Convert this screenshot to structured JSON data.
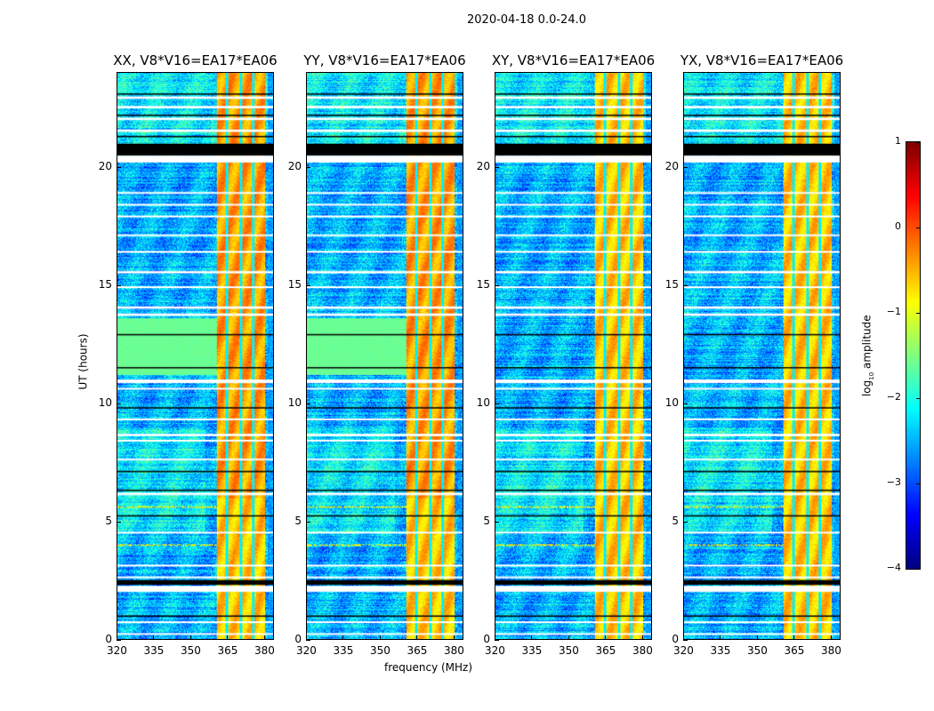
{
  "chart_data": {
    "type": "heatmap",
    "title": "2020-04-18 0.0-24.0",
    "xlabel": "frequency (MHz)",
    "ylabel": "UT (hours)",
    "xlim": [
      320,
      384
    ],
    "ylim": [
      0,
      24
    ],
    "xticks": [
      "320",
      "335",
      "350",
      "365",
      "380"
    ],
    "xtick_values": [
      320,
      335,
      350,
      365,
      380
    ],
    "yticks": [
      "0",
      "5",
      "10",
      "15",
      "20"
    ],
    "ytick_values": [
      0,
      5,
      10,
      15,
      20
    ],
    "panels": [
      {
        "title": "XX, V8*V16=EA17*EA06",
        "parallel": true
      },
      {
        "title": "YY, V8*V16=EA17*EA06",
        "parallel": true
      },
      {
        "title": "XY, V8*V16=EA17*EA06",
        "parallel": false
      },
      {
        "title": "YX, V8*V16=EA17*EA06",
        "parallel": false
      }
    ],
    "colorbar": {
      "label": "log10 amplitude",
      "label_main": "log",
      "label_sub": "10",
      "label_rest": " amplitude",
      "range": [
        -4,
        1
      ],
      "ticks": [
        "1",
        "0",
        "−1",
        "−2",
        "−3",
        "−4"
      ],
      "tick_values": [
        1,
        0,
        -1,
        -2,
        -3,
        -4
      ],
      "colormap": "jet"
    },
    "rfi_band_mhz": [
      360.7,
      380.4
    ],
    "rfi_gaps_mhz": [
      365,
      370.5,
      375.6
    ],
    "flagged_white_hours": [
      [
        0.2,
        0.25
      ],
      [
        0.7,
        0.75
      ],
      [
        2.0,
        2.25
      ],
      [
        2.6,
        2.65
      ],
      [
        3.1,
        3.15
      ],
      [
        4.5,
        4.55
      ],
      [
        6.1,
        6.2
      ],
      [
        7.6,
        7.65
      ],
      [
        8.4,
        8.45
      ],
      [
        8.6,
        8.7
      ],
      [
        9.3,
        9.35
      ],
      [
        10.6,
        10.65
      ],
      [
        10.85,
        11.0
      ],
      [
        13.7,
        13.8
      ],
      [
        14.0,
        14.1
      ],
      [
        14.9,
        14.95
      ],
      [
        15.5,
        15.6
      ],
      [
        16.4,
        16.45
      ],
      [
        17.1,
        17.15
      ],
      [
        17.9,
        17.95
      ],
      [
        18.4,
        18.45
      ],
      [
        18.9,
        18.95
      ],
      [
        20.2,
        20.5
      ],
      [
        21.5,
        21.6
      ],
      [
        22.0,
        22.1
      ],
      [
        22.5,
        22.6
      ],
      [
        22.9,
        23.0
      ]
    ],
    "flagged_black_hours": [
      [
        0.95,
        1.0
      ],
      [
        2.3,
        2.5
      ],
      [
        5.2,
        5.25
      ],
      [
        6.3,
        6.33
      ],
      [
        7.1,
        7.13
      ],
      [
        9.8,
        9.83
      ],
      [
        11.5,
        11.53
      ],
      [
        12.9,
        12.93
      ],
      [
        20.5,
        21.0
      ],
      [
        21.3,
        21.33
      ],
      [
        22.2,
        22.23
      ],
      [
        23.1,
        23.13
      ]
    ],
    "parallel_hand_green_hours": [
      11.2,
      13.6
    ],
    "rfi_line_hours": [
      4.0,
      5.6
    ]
  }
}
